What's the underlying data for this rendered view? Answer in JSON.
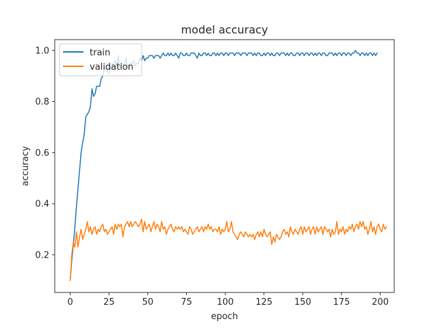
{
  "chart_data": {
    "type": "line",
    "title": "model accuracy",
    "xlabel": "epoch",
    "ylabel": "accuracy",
    "xlim": [
      -10,
      209
    ],
    "ylim": [
      0.0525,
      1.0425
    ],
    "xticks": [
      0,
      25,
      50,
      75,
      100,
      125,
      150,
      175,
      200
    ],
    "yticks": [
      0.2,
      0.4,
      0.6,
      0.8,
      1.0
    ],
    "yticks_labels": [
      "0.2",
      "0.4",
      "0.6",
      "0.8",
      "1.0"
    ],
    "grid": false,
    "legend_position": "upper-left",
    "series": [
      {
        "name": "train",
        "color": "#1f77b4",
        "y": [
          0.1,
          0.18,
          0.24,
          0.31,
          0.39,
          0.46,
          0.53,
          0.6,
          0.64,
          0.67,
          0.74,
          0.75,
          0.76,
          0.78,
          0.85,
          0.82,
          0.83,
          0.86,
          0.86,
          0.86,
          0.89,
          0.9,
          0.93,
          0.93,
          0.92,
          0.91,
          0.93,
          0.94,
          0.95,
          0.96,
          0.94,
          0.98,
          0.93,
          0.95,
          0.94,
          0.95,
          0.97,
          0.93,
          0.94,
          0.95,
          0.95,
          0.96,
          0.94,
          0.95,
          0.95,
          0.97,
          0.96,
          0.98,
          0.96,
          0.97,
          0.97,
          0.98,
          0.98,
          0.98,
          0.97,
          0.98,
          0.98,
          0.98,
          0.97,
          0.98,
          0.99,
          0.98,
          0.98,
          0.99,
          0.98,
          0.99,
          0.98,
          0.98,
          0.99,
          0.98,
          0.97,
          0.99,
          0.99,
          0.98,
          0.98,
          0.99,
          0.98,
          0.98,
          0.99,
          0.99,
          0.99,
          0.98,
          0.97,
          0.99,
          0.98,
          0.98,
          0.99,
          0.99,
          0.98,
          0.99,
          0.98,
          0.98,
          0.99,
          0.99,
          0.98,
          0.99,
          0.98,
          0.99,
          0.99,
          0.98,
          0.99,
          0.99,
          0.98,
          0.99,
          0.99,
          0.99,
          0.98,
          0.99,
          0.99,
          0.99,
          0.98,
          0.99,
          0.99,
          0.99,
          0.98,
          0.99,
          0.99,
          0.99,
          0.98,
          0.99,
          0.98,
          0.99,
          0.99,
          0.98,
          0.98,
          0.99,
          0.98,
          0.99,
          0.99,
          0.98,
          0.99,
          0.98,
          0.98,
          0.99,
          0.99,
          0.98,
          0.99,
          0.99,
          0.99,
          0.98,
          0.99,
          0.98,
          0.99,
          0.99,
          0.98,
          0.98,
          0.99,
          0.99,
          0.98,
          0.99,
          0.99,
          0.98,
          0.99,
          0.99,
          0.98,
          0.99,
          0.99,
          0.98,
          0.99,
          0.98,
          0.99,
          0.99,
          0.98,
          0.99,
          0.99,
          0.98,
          0.98,
          0.99,
          0.99,
          0.99,
          0.98,
          0.99,
          0.98,
          0.99,
          0.99,
          0.98,
          0.99,
          0.99,
          0.98,
          0.99,
          0.99,
          0.98,
          0.99,
          0.99,
          1.0,
          0.99,
          0.99,
          0.98,
          0.99,
          0.99,
          0.98,
          0.99,
          0.98,
          0.99,
          0.99,
          0.98,
          0.99,
          0.98,
          0.99
        ]
      },
      {
        "name": "validation",
        "color": "#ff7f0e",
        "y": [
          0.1,
          0.2,
          0.25,
          0.23,
          0.29,
          0.23,
          0.27,
          0.3,
          0.26,
          0.28,
          0.3,
          0.33,
          0.29,
          0.31,
          0.28,
          0.3,
          0.31,
          0.28,
          0.3,
          0.29,
          0.31,
          0.32,
          0.29,
          0.3,
          0.28,
          0.29,
          0.3,
          0.31,
          0.28,
          0.32,
          0.3,
          0.32,
          0.31,
          0.32,
          0.27,
          0.31,
          0.32,
          0.33,
          0.31,
          0.33,
          0.31,
          0.32,
          0.33,
          0.32,
          0.31,
          0.32,
          0.34,
          0.29,
          0.33,
          0.3,
          0.31,
          0.32,
          0.29,
          0.31,
          0.33,
          0.3,
          0.32,
          0.31,
          0.29,
          0.33,
          0.3,
          0.31,
          0.28,
          0.3,
          0.31,
          0.32,
          0.3,
          0.29,
          0.31,
          0.3,
          0.31,
          0.3,
          0.31,
          0.29,
          0.3,
          0.29,
          0.28,
          0.31,
          0.3,
          0.28,
          0.29,
          0.3,
          0.31,
          0.29,
          0.3,
          0.31,
          0.29,
          0.31,
          0.3,
          0.32,
          0.3,
          0.31,
          0.29,
          0.3,
          0.3,
          0.29,
          0.31,
          0.28,
          0.3,
          0.29,
          0.3,
          0.33,
          0.29,
          0.3,
          0.33,
          0.29,
          0.28,
          0.27,
          0.26,
          0.28,
          0.29,
          0.28,
          0.27,
          0.29,
          0.28,
          0.27,
          0.28,
          0.27,
          0.28,
          0.26,
          0.28,
          0.29,
          0.27,
          0.29,
          0.27,
          0.3,
          0.28,
          0.27,
          0.28,
          0.29,
          0.24,
          0.27,
          0.25,
          0.28,
          0.27,
          0.26,
          0.27,
          0.29,
          0.3,
          0.28,
          0.29,
          0.27,
          0.31,
          0.29,
          0.28,
          0.3,
          0.29,
          0.28,
          0.3,
          0.31,
          0.28,
          0.31,
          0.29,
          0.3,
          0.31,
          0.28,
          0.3,
          0.31,
          0.28,
          0.31,
          0.29,
          0.3,
          0.31,
          0.28,
          0.31,
          0.3,
          0.29,
          0.3,
          0.27,
          0.3,
          0.28,
          0.29,
          0.33,
          0.28,
          0.3,
          0.29,
          0.31,
          0.28,
          0.3,
          0.29,
          0.31,
          0.3,
          0.32,
          0.29,
          0.31,
          0.32,
          0.3,
          0.33,
          0.31,
          0.33,
          0.3,
          0.31,
          0.28,
          0.3,
          0.33,
          0.29,
          0.31,
          0.28,
          0.31,
          0.32,
          0.3,
          0.29,
          0.32,
          0.3,
          0.31
        ]
      }
    ]
  }
}
